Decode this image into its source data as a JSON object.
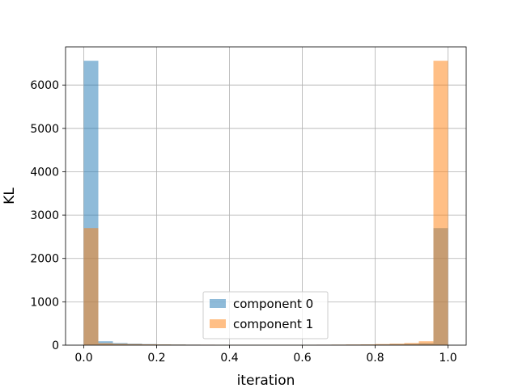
{
  "chart_data": {
    "type": "bar",
    "subtype": "histogram-overlay",
    "title": "",
    "xlabel": "iteration",
    "ylabel": "KL",
    "xlim": [
      -0.05,
      1.05
    ],
    "ylim": [
      0,
      6880
    ],
    "grid": true,
    "legend_position": "bottom-center",
    "xticks": [
      0.0,
      0.2,
      0.4,
      0.6,
      0.8,
      1.0
    ],
    "xtick_labels": [
      "0.0",
      "0.2",
      "0.4",
      "0.6",
      "0.8",
      "1.0"
    ],
    "yticks": [
      0,
      1000,
      2000,
      3000,
      4000,
      5000,
      6000
    ],
    "ytick_labels": [
      "0",
      "1000",
      "2000",
      "3000",
      "4000",
      "5000",
      "6000"
    ],
    "bin_edges": [
      0.0,
      0.04,
      0.08,
      0.12,
      0.16,
      0.2,
      0.24,
      0.28,
      0.32,
      0.36,
      0.4,
      0.44,
      0.48,
      0.52,
      0.56,
      0.6,
      0.64,
      0.68,
      0.72,
      0.76,
      0.8,
      0.84,
      0.88,
      0.92,
      0.96,
      1.0
    ],
    "series": [
      {
        "name": "component 0",
        "color": "#1f77b4",
        "alpha": 0.5,
        "values": [
          6560,
          90,
          50,
          35,
          25,
          18,
          15,
          12,
          10,
          9,
          8,
          8,
          7,
          8,
          8,
          9,
          10,
          11,
          13,
          16,
          20,
          25,
          32,
          45,
          2700
        ]
      },
      {
        "name": "component 1",
        "color": "#ff7f0e",
        "alpha": 0.5,
        "values": [
          2700,
          45,
          32,
          25,
          20,
          16,
          13,
          11,
          10,
          9,
          8,
          8,
          7,
          8,
          8,
          9,
          10,
          12,
          15,
          18,
          25,
          35,
          50,
          90,
          6560
        ]
      }
    ]
  }
}
